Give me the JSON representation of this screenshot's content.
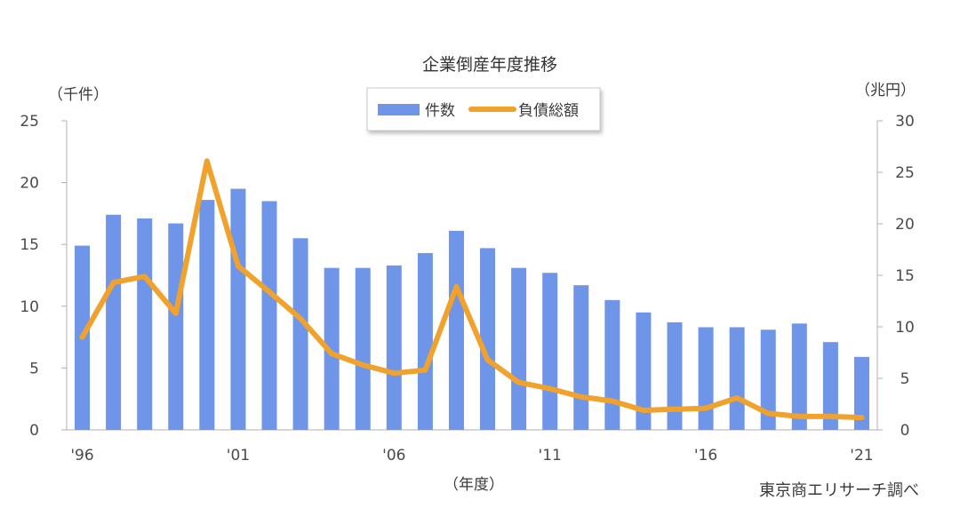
{
  "chart_data": {
    "type": "bar+line",
    "title": "企業倒産年度推移",
    "y_left_unit": "（千件）",
    "y_right_unit": "（兆円）",
    "xlabel": "（年度）",
    "source": "東京商エリサーチ調べ",
    "x_tick_labels": [
      "'96",
      "'01",
      "'06",
      "'11",
      "'16",
      "'21"
    ],
    "years": [
      1996,
      1997,
      1998,
      1999,
      2000,
      2001,
      2002,
      2003,
      2004,
      2005,
      2006,
      2007,
      2008,
      2009,
      2010,
      2011,
      2012,
      2013,
      2014,
      2015,
      2016,
      2017,
      2018,
      2019,
      2020,
      2021
    ],
    "y_left_ticks": [
      0,
      5,
      10,
      15,
      20,
      25
    ],
    "y_right_ticks": [
      0,
      5,
      10,
      15,
      20,
      25,
      30
    ],
    "y_left_range": [
      0,
      25
    ],
    "y_right_range": [
      0,
      30
    ],
    "legend_position": "top-center",
    "series": [
      {
        "name": "件数",
        "type": "bar",
        "axis": "left",
        "color": "#6f95e8",
        "values": [
          14.9,
          17.4,
          17.1,
          16.7,
          18.6,
          19.5,
          18.5,
          15.5,
          13.1,
          13.1,
          13.3,
          14.3,
          16.1,
          14.7,
          13.1,
          12.7,
          11.7,
          10.5,
          9.5,
          8.7,
          8.3,
          8.3,
          8.1,
          8.6,
          7.1,
          5.9
        ]
      },
      {
        "name": "負債総額",
        "type": "line",
        "axis": "right",
        "color": "#f0a22c",
        "values": [
          9.0,
          14.3,
          14.9,
          11.3,
          26.1,
          15.9,
          13.4,
          10.8,
          7.4,
          6.3,
          5.5,
          5.8,
          13.9,
          6.8,
          4.6,
          4.0,
          3.2,
          2.8,
          1.9,
          2.0,
          2.1,
          3.1,
          1.6,
          1.3,
          1.3,
          1.2
        ]
      }
    ]
  }
}
